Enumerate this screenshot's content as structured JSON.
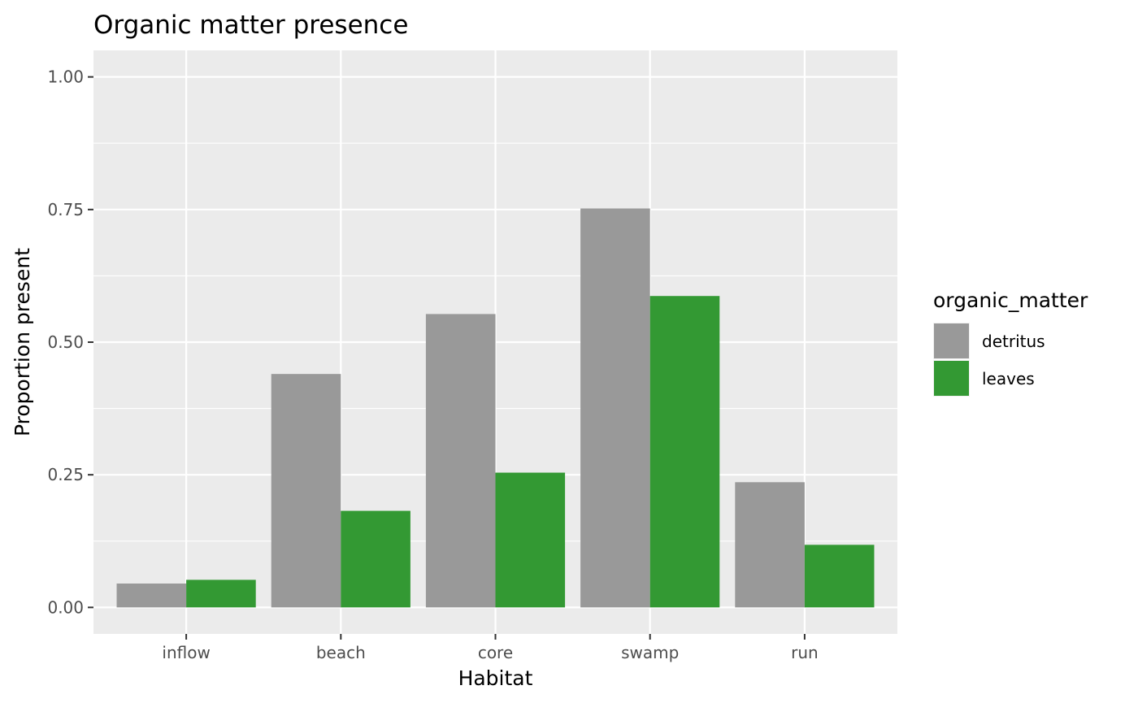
{
  "chart_data": {
    "type": "bar",
    "title": "Organic matter presence",
    "xlabel": "Habitat",
    "ylabel": "Proportion present",
    "categories": [
      "inflow",
      "beach",
      "core",
      "swamp",
      "run"
    ],
    "series": [
      {
        "name": "detritus",
        "color": "#999999",
        "values": [
          0.045,
          0.44,
          0.553,
          0.752,
          0.236
        ]
      },
      {
        "name": "leaves",
        "color": "#339933",
        "values": [
          0.052,
          0.182,
          0.254,
          0.587,
          0.118
        ]
      }
    ],
    "ylim": [
      -0.05,
      1.05
    ],
    "yticks": [
      0.0,
      0.25,
      0.5,
      0.75,
      1.0
    ],
    "ytick_labels": [
      "0.00",
      "0.25",
      "0.50",
      "0.75",
      "1.00"
    ],
    "legend": {
      "title": "organic_matter",
      "position": "right"
    },
    "grid": true,
    "panel_background": "#ebebeb"
  }
}
